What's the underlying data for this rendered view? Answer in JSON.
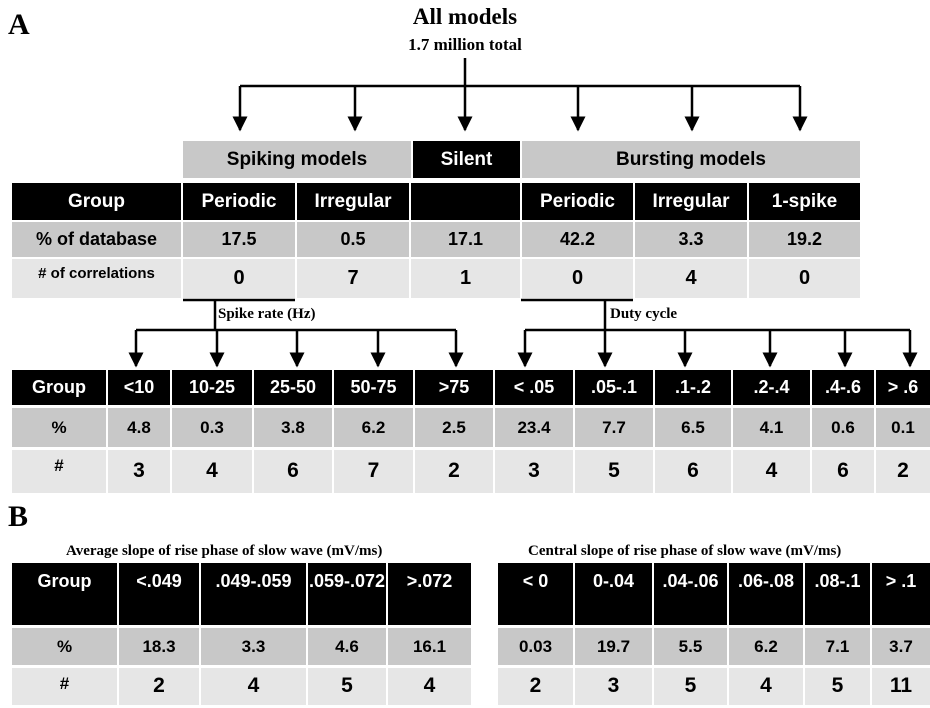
{
  "panel_a": {
    "label": "A",
    "title": "All models",
    "subtitle": "1.7 million total",
    "top_table": {
      "group_headers": [
        "Spiking models",
        "Silent",
        "Bursting models"
      ],
      "header": {
        "label": "Group",
        "columns": [
          "Periodic",
          "Irregular",
          null,
          "Periodic",
          "Irregular",
          "1-spike"
        ]
      },
      "rows": [
        {
          "label": "% of database",
          "values": [
            17.5,
            0.5,
            17.1,
            42.2,
            3.3,
            19.2
          ]
        },
        {
          "label": "# of correlations",
          "values": [
            0,
            7,
            1,
            0,
            4,
            0
          ]
        }
      ]
    },
    "spike_table": {
      "caption": "Spike rate (Hz)",
      "header": {
        "label": "Group",
        "columns": [
          "<10",
          "10-25",
          "25-50",
          "50-75",
          ">75"
        ]
      },
      "rows": [
        {
          "label": "%",
          "values": [
            4.8,
            0.3,
            3.8,
            6.2,
            2.5
          ]
        },
        {
          "label": "#",
          "values": [
            3,
            4,
            6,
            7,
            2
          ]
        }
      ]
    },
    "duty_table": {
      "caption": "Duty cycle",
      "header": {
        "columns": [
          "< .05",
          ".05-.1",
          ".1-.2",
          ".2-.4",
          ".4-.6",
          "> .6"
        ]
      },
      "rows": [
        {
          "values": [
            23.4,
            7.7,
            6.5,
            4.1,
            0.6,
            0.1
          ]
        },
        {
          "values": [
            3,
            5,
            6,
            4,
            6,
            2
          ]
        }
      ]
    }
  },
  "panel_b": {
    "label": "B",
    "average_table": {
      "caption": "Average slope of rise phase of slow wave (mV/ms)",
      "header": {
        "label": "Group",
        "columns": [
          "<.049",
          ".049-.059",
          ".059-.072",
          ">.072"
        ]
      },
      "rows": [
        {
          "label": "%",
          "values": [
            18.3,
            3.3,
            4.6,
            16.1
          ]
        },
        {
          "label": "#",
          "values": [
            2,
            4,
            5,
            4
          ]
        }
      ]
    },
    "central_table": {
      "caption": "Central slope of rise phase of slow wave (mV/ms)",
      "header": {
        "columns": [
          "< 0",
          "0-.04",
          ".04-.06",
          ".06-.08",
          ".08-.1",
          "> .1"
        ]
      },
      "rows": [
        {
          "values": [
            0.03,
            19.7,
            5.5,
            6.2,
            7.1,
            3.7
          ]
        },
        {
          "values": [
            2,
            3,
            5,
            4,
            5,
            11
          ]
        }
      ]
    }
  }
}
